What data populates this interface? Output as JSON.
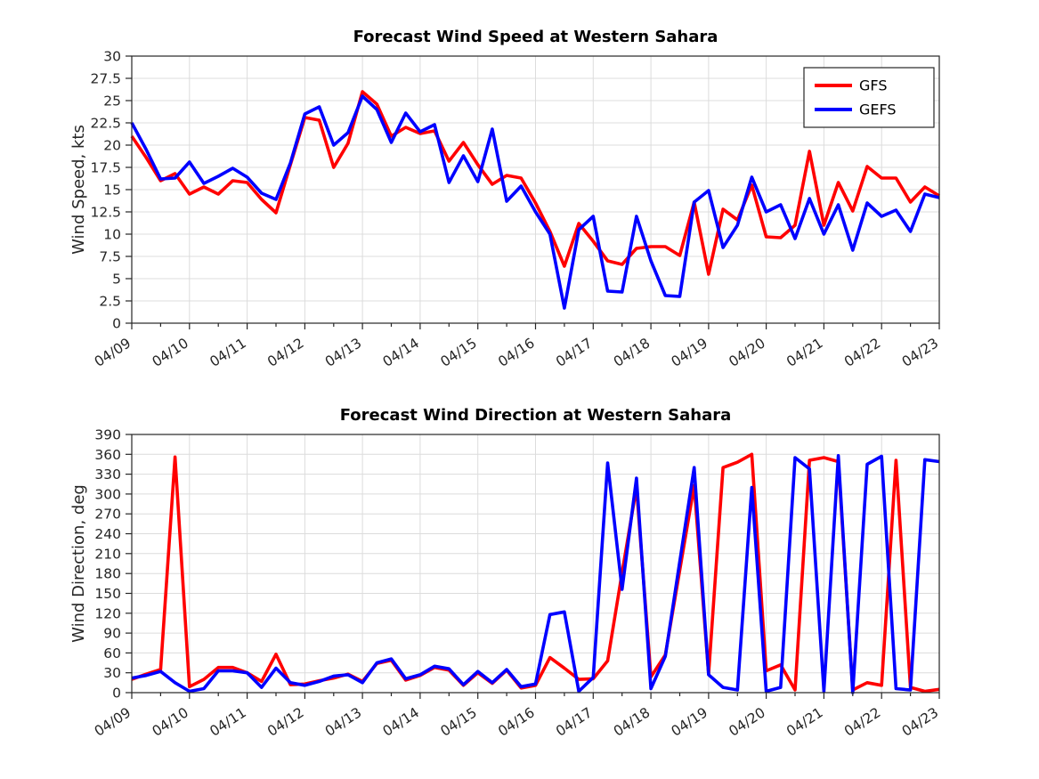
{
  "figure": {
    "background": "#ffffff",
    "text_color": "#262626",
    "grid_color": "#dcdcdc",
    "axis_color": "#262626"
  },
  "legend": {
    "items": [
      {
        "label": "GFS",
        "color": "#ff0000"
      },
      {
        "label": "GEFS",
        "color": "#0000ff"
      }
    ],
    "position": "top-right"
  },
  "chart_data": [
    {
      "type": "line",
      "panel": "wind-speed",
      "title": "Forecast Wind Speed at Western Sahara",
      "xlabel": "",
      "ylabel": "Wind Speed, kts",
      "ylim": [
        0,
        30
      ],
      "ytick_step": 2.5,
      "y_tick_labels": [
        "0",
        "2.5",
        "5",
        "7.5",
        "10",
        "12.5",
        "15",
        "17.5",
        "20",
        "22.5",
        "25",
        "27.5",
        "30"
      ],
      "x_tick_labels": [
        "04/09",
        "04/10",
        "04/11",
        "04/12",
        "04/13",
        "04/14",
        "04/15",
        "04/16",
        "04/17",
        "04/18",
        "04/19",
        "04/20",
        "04/21",
        "04/22",
        "04/23"
      ],
      "x_range_days": 14,
      "x_interval_hours": 6,
      "grid": true,
      "legend_visible": true,
      "series": [
        {
          "name": "GFS",
          "color": "#ff0000",
          "values": [
            21.0,
            18.6,
            16.0,
            16.8,
            14.5,
            15.3,
            14.5,
            16.0,
            15.8,
            13.9,
            12.4,
            17.8,
            23.1,
            22.8,
            17.5,
            20.2,
            26.0,
            24.6,
            21.0,
            22.0,
            21.3,
            21.6,
            18.2,
            20.3,
            17.8,
            15.6,
            16.6,
            16.3,
            13.5,
            10.3,
            6.4,
            11.2,
            9.2,
            7.0,
            6.6,
            8.4,
            8.6,
            8.6,
            7.6,
            13.6,
            5.5,
            12.8,
            11.6,
            15.5,
            9.7,
            9.6,
            11.0,
            19.3,
            11.0,
            15.8,
            12.6,
            17.6,
            16.3,
            16.3,
            13.6,
            15.3,
            14.3
          ]
        },
        {
          "name": "GEFS",
          "color": "#0000ff",
          "values": [
            22.5,
            19.5,
            16.2,
            16.3,
            18.1,
            15.7,
            16.5,
            17.4,
            16.4,
            14.6,
            13.9,
            18.0,
            23.5,
            24.3,
            20.0,
            21.4,
            25.5,
            24.0,
            20.3,
            23.6,
            21.5,
            22.3,
            15.8,
            18.8,
            15.9,
            21.8,
            13.7,
            15.4,
            12.5,
            10.0,
            1.7,
            10.5,
            12.0,
            3.6,
            3.5,
            12.0,
            7.0,
            3.1,
            3.0,
            13.6,
            14.9,
            8.5,
            11.0,
            16.4,
            12.5,
            13.3,
            9.5,
            14.0,
            10.0,
            13.3,
            8.2,
            13.5,
            12.0,
            12.7,
            10.3,
            14.5,
            14.1
          ]
        }
      ]
    },
    {
      "type": "line",
      "panel": "wind-direction",
      "title": "Forecast Wind Direction at Western Sahara",
      "xlabel": "",
      "ylabel": "Wind Direction, deg",
      "ylim": [
        0,
        390
      ],
      "ytick_step": 30,
      "y_tick_labels": [
        "0",
        "30",
        "60",
        "90",
        "120",
        "150",
        "180",
        "210",
        "240",
        "270",
        "300",
        "330",
        "360",
        "390"
      ],
      "x_tick_labels": [
        "04/09",
        "04/10",
        "04/11",
        "04/12",
        "04/13",
        "04/14",
        "04/15",
        "04/16",
        "04/17",
        "04/18",
        "04/19",
        "04/20",
        "04/21",
        "04/22",
        "04/23"
      ],
      "x_range_days": 14,
      "x_interval_hours": 6,
      "grid": true,
      "legend_visible": false,
      "series": [
        {
          "name": "GFS",
          "color": "#ff0000",
          "values": [
            20,
            28,
            35,
            356,
            9,
            20,
            38,
            38,
            30,
            17,
            58,
            12,
            13,
            18,
            22,
            28,
            17,
            44,
            49,
            19,
            26,
            38,
            34,
            11,
            30,
            14,
            34,
            7,
            11,
            53,
            37,
            20,
            21,
            48,
            181,
            310,
            24,
            57,
            185,
            313,
            28,
            340,
            348,
            360,
            33,
            42,
            4,
            351,
            355,
            349,
            4,
            15,
            11,
            351,
            8,
            2,
            5
          ]
        },
        {
          "name": "GEFS",
          "color": "#0000ff",
          "values": [
            22,
            26,
            32,
            15,
            2,
            6,
            33,
            33,
            30,
            8,
            37,
            15,
            11,
            17,
            25,
            27,
            15,
            45,
            51,
            21,
            27,
            40,
            36,
            12,
            32,
            15,
            35,
            9,
            13,
            118,
            122,
            2,
            23,
            347,
            156,
            324,
            6,
            55,
            198,
            340,
            27,
            8,
            4,
            310,
            2,
            8,
            355,
            338,
            2,
            358,
            0,
            345,
            357,
            6,
            4,
            352,
            349
          ]
        }
      ]
    }
  ]
}
